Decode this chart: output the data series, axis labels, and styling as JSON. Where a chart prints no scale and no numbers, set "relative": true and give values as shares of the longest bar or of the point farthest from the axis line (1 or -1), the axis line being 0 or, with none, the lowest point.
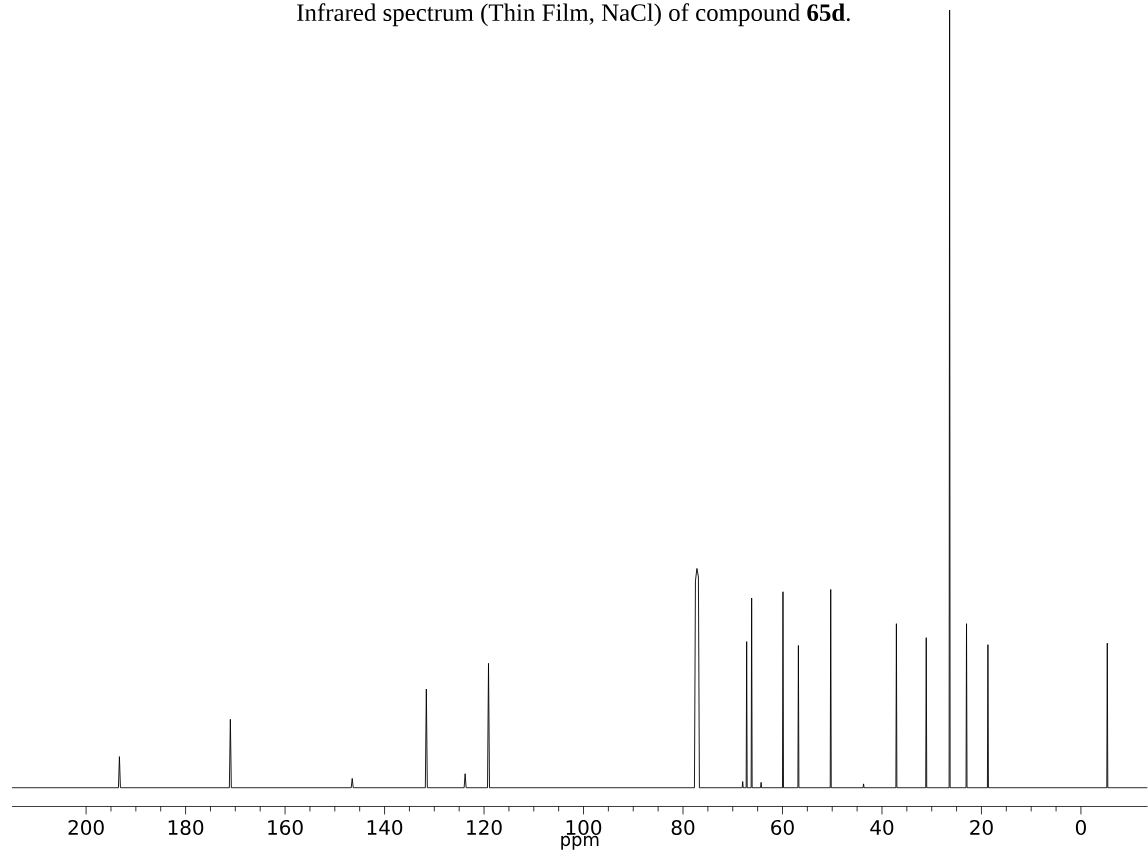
{
  "chart_data": {
    "type": "line",
    "title": "Infrared spectrum (Thin Film, NaCl) of compound **65d**.",
    "xlabel": "ppm",
    "relative": true,
    "xlim": [
      214.9,
      -13.4
    ],
    "xticks": [
      200,
      180,
      160,
      140,
      120,
      100,
      80,
      60,
      40,
      20,
      0
    ],
    "grid": false,
    "marker": "none",
    "line_style": "solid",
    "series": [
      {
        "color": "#000000",
        "x": [
          214.9,
          193.5,
          193.3,
          193.1,
          171.2,
          171.0,
          170.8,
          146.7,
          146.5,
          146.3,
          131.8,
          131.6,
          131.4,
          124.0,
          123.8,
          123.6,
          119.3,
          119.1,
          118.9,
          77.7,
          77.5,
          77.2,
          76.9,
          76.7,
          68.1,
          68.0,
          67.9,
          67.3,
          67.2,
          67.1,
          66.3,
          66.2,
          66.1,
          64.4,
          64.3,
          64.2,
          60.0,
          59.9,
          59.8,
          56.9,
          56.8,
          56.7,
          50.4,
          50.3,
          50.2,
          43.8,
          43.7,
          43.6,
          37.2,
          37.1,
          37.0,
          31.2,
          31.1,
          31.0,
          26.5,
          26.4,
          26.3,
          23.1,
          23.0,
          22.9,
          18.8,
          18.7,
          18.6,
          -5.2,
          -5.3,
          -5.4,
          -13.4
        ],
        "values": [
          0,
          0,
          0.04,
          0,
          0,
          0.088,
          0,
          0,
          0.012,
          0,
          0,
          0.127,
          0,
          0,
          0.018,
          0,
          0,
          0.16,
          0,
          0,
          0.266,
          0.282,
          0.271,
          0,
          0,
          0.008,
          0,
          0,
          0.188,
          0,
          0,
          0.244,
          0,
          0,
          0.007,
          0,
          0,
          0.252,
          0,
          0,
          0.183,
          0,
          0,
          0.255,
          0,
          0,
          0.005,
          0,
          0,
          0.211,
          0,
          0,
          0.193,
          0,
          0,
          1.0,
          0,
          0,
          0.211,
          0,
          0,
          0.184,
          0,
          0,
          0.186,
          0,
          0
        ]
      }
    ]
  }
}
